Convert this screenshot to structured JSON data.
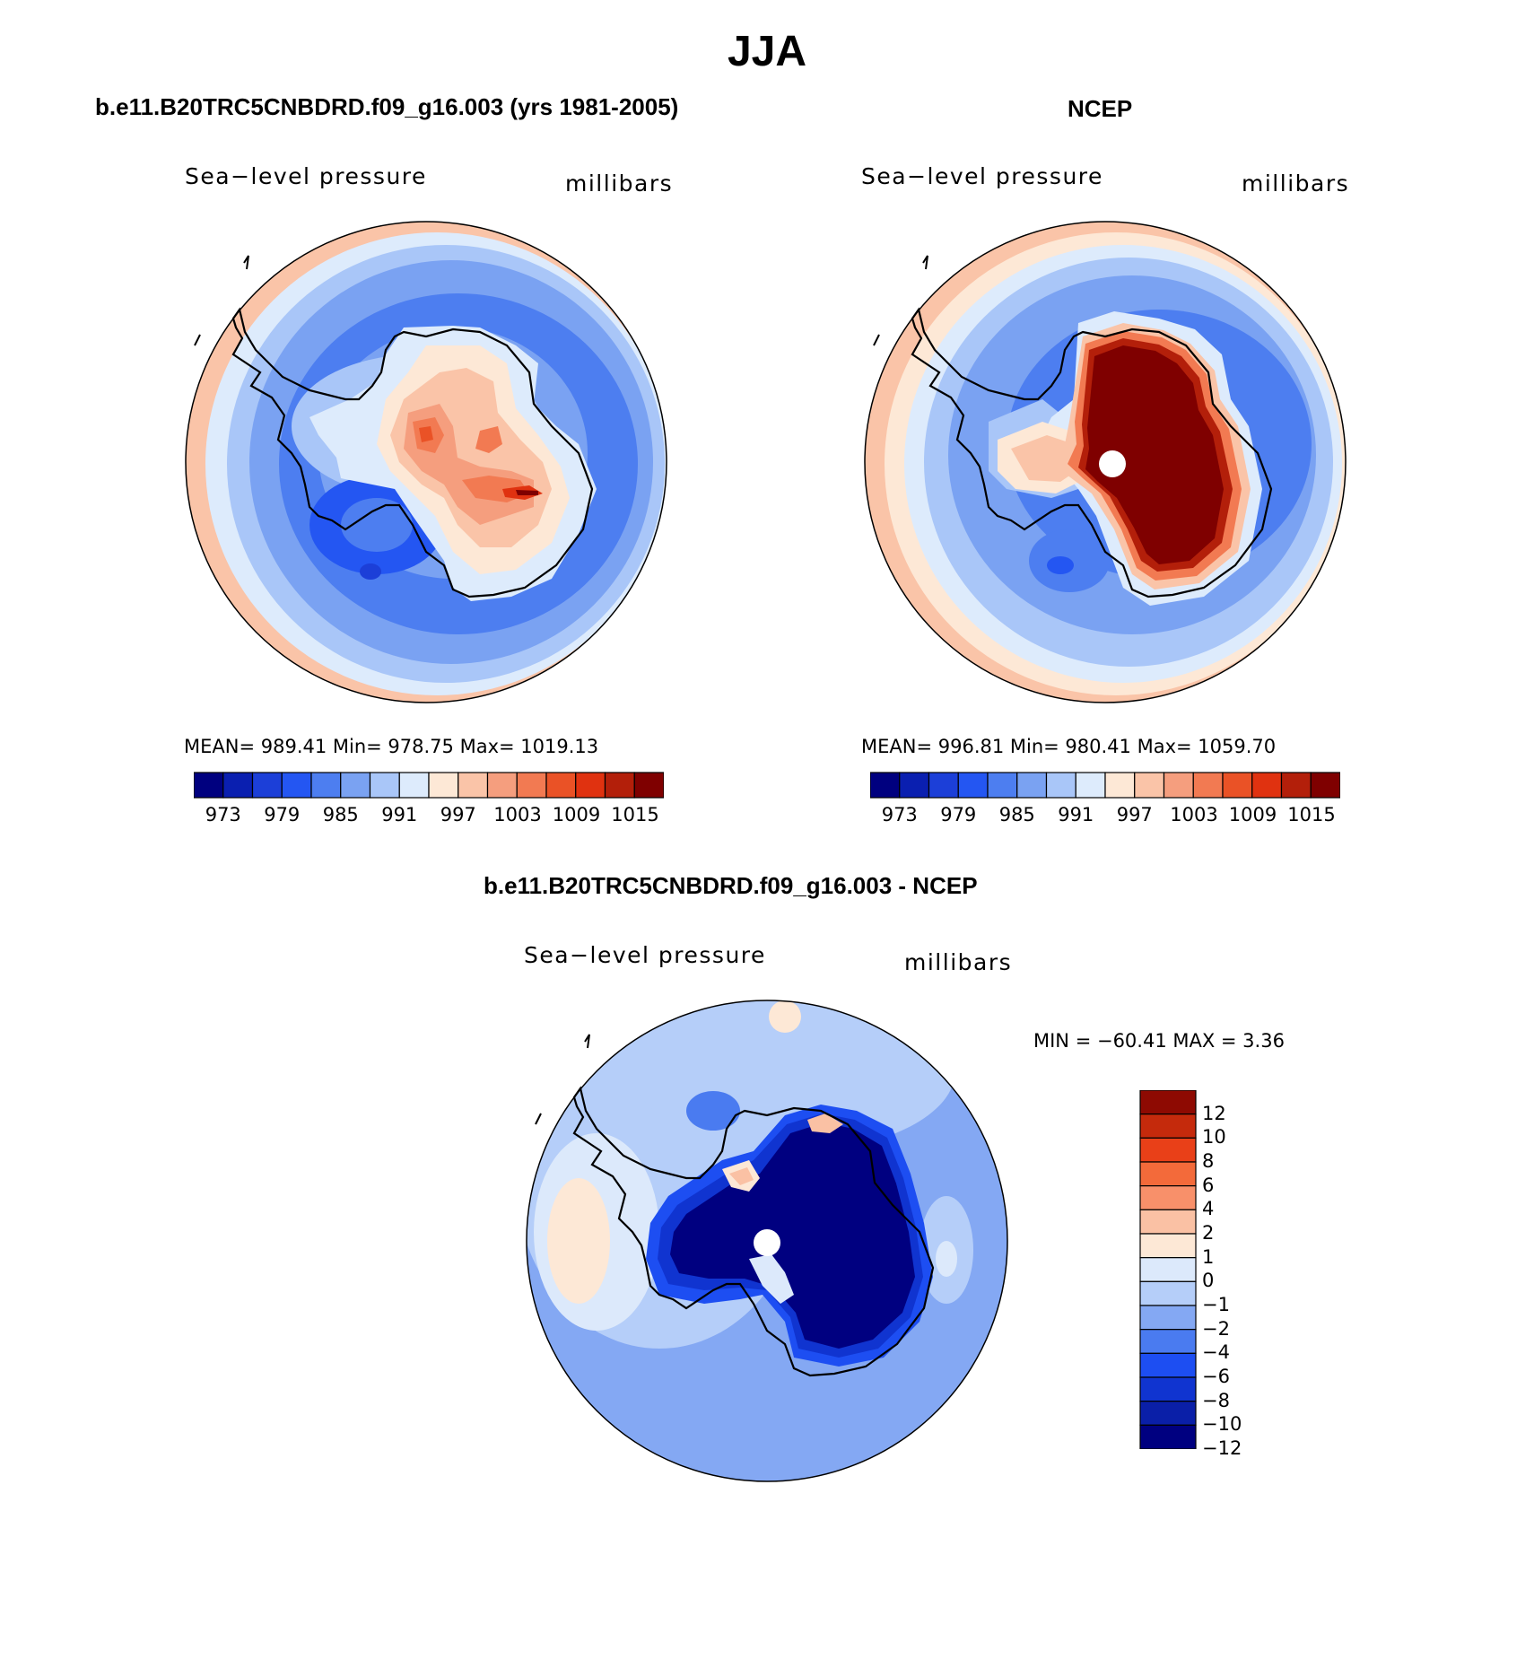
{
  "title": "JJA",
  "colors": {
    "pressure_scale": [
      "#00007f",
      "#0a1fb0",
      "#1c3fd8",
      "#2456f2",
      "#4d7ef0",
      "#7aa2f2",
      "#a9c6f8",
      "#ddebfc",
      "#fde8d6",
      "#fac4a8",
      "#f59e7e",
      "#f27a52",
      "#ea5226",
      "#e03210",
      "#b31f0a",
      "#7f0000"
    ],
    "diff_scale": [
      "#000080",
      "#0a1fa8",
      "#1034d0",
      "#1d4ef2",
      "#4a7bf0",
      "#84a8f3",
      "#b5cef9",
      "#dce9fb",
      "#fde8d6",
      "#fac1a4",
      "#f8906a",
      "#f36a3a",
      "#e94018",
      "#c52a0c",
      "#8e0a02"
    ]
  },
  "panels": {
    "model": {
      "title": "b.e11.B20TRC5CNBDRD.f09_g16.003 (yrs 1981-2005)",
      "left_label": "Sea−level pressure",
      "right_label": "millibars",
      "stats": "MEAN= 989.41   Min= 978.75   Max= 1019.13",
      "ticks": [
        "973",
        "979",
        "985",
        "991",
        "997",
        "1003",
        "1009",
        "1015"
      ]
    },
    "obs": {
      "title": "NCEP",
      "left_label": "Sea−level pressure",
      "right_label": "millibars",
      "stats": "MEAN= 996.81   Min= 980.41   Max= 1059.70",
      "ticks": [
        "973",
        "979",
        "985",
        "991",
        "997",
        "1003",
        "1009",
        "1015"
      ]
    },
    "diff": {
      "title": "b.e11.B20TRC5CNBDRD.f09_g16.003 - NCEP",
      "left_label": "Sea−level pressure",
      "right_label": "millibars",
      "stats": "MIN = −60.41  MAX =     3.36",
      "ticks": [
        "12",
        "10",
        "8",
        "6",
        "4",
        "2",
        "1",
        "0",
        "−1",
        "−2",
        "−4",
        "−6",
        "−8",
        "−10",
        "−12"
      ]
    }
  }
}
